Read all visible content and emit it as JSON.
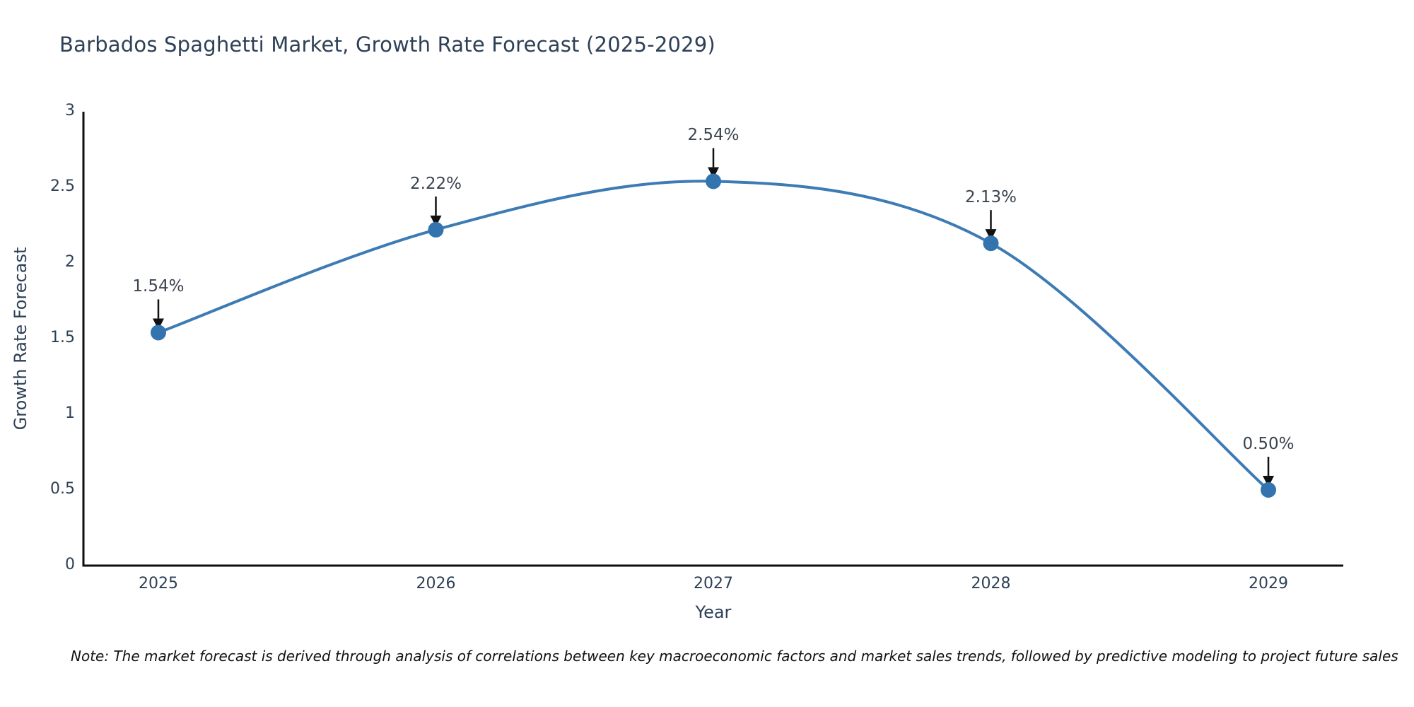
{
  "chart": {
    "title": "Barbados Spaghetti Market, Growth Rate Forecast (2025-2029)",
    "xlabel": "Year",
    "ylabel": "Growth Rate Forecast",
    "note": "Note: The market forecast is derived through analysis of correlations between key macroeconomic factors and market sales trends, followed by predictive modeling to project future sales"
  },
  "chart_data": {
    "type": "line",
    "curve": "spline",
    "title": "Barbados Spaghetti Market, Growth Rate Forecast (2025-2029)",
    "xlabel": "Year",
    "ylabel": "Growth Rate Forecast",
    "x": [
      2025,
      2026,
      2027,
      2028,
      2029
    ],
    "values": [
      1.54,
      2.22,
      2.54,
      2.13,
      0.5
    ],
    "point_labels": [
      "1.54%",
      "2.22%",
      "2.54%",
      "2.13%",
      "0.50%"
    ],
    "xticks": [
      2025,
      2026,
      2027,
      2028,
      2029
    ],
    "xtick_labels": [
      "2025",
      "2026",
      "2027",
      "2028",
      "2029"
    ],
    "yticks": [
      0,
      0.5,
      1,
      1.5,
      2,
      2.5,
      3
    ],
    "ytick_labels": [
      "0",
      "0.5",
      "1",
      "1.5",
      "2",
      "2.5",
      "3"
    ],
    "xlim": [
      2024.73,
      2029.27
    ],
    "ylim": [
      0,
      3
    ],
    "grid": false,
    "legend": "none",
    "line_width": 4,
    "marker_size": 22,
    "colors": {
      "line": "#3d7bb4",
      "marker": "#3373ae",
      "axis": "#0d0d0d",
      "text": "#2e4057",
      "annotation_text": "#3b4450",
      "annotation_arrow": "#111111",
      "note_text": "#111111",
      "background": "#ffffff"
    }
  }
}
